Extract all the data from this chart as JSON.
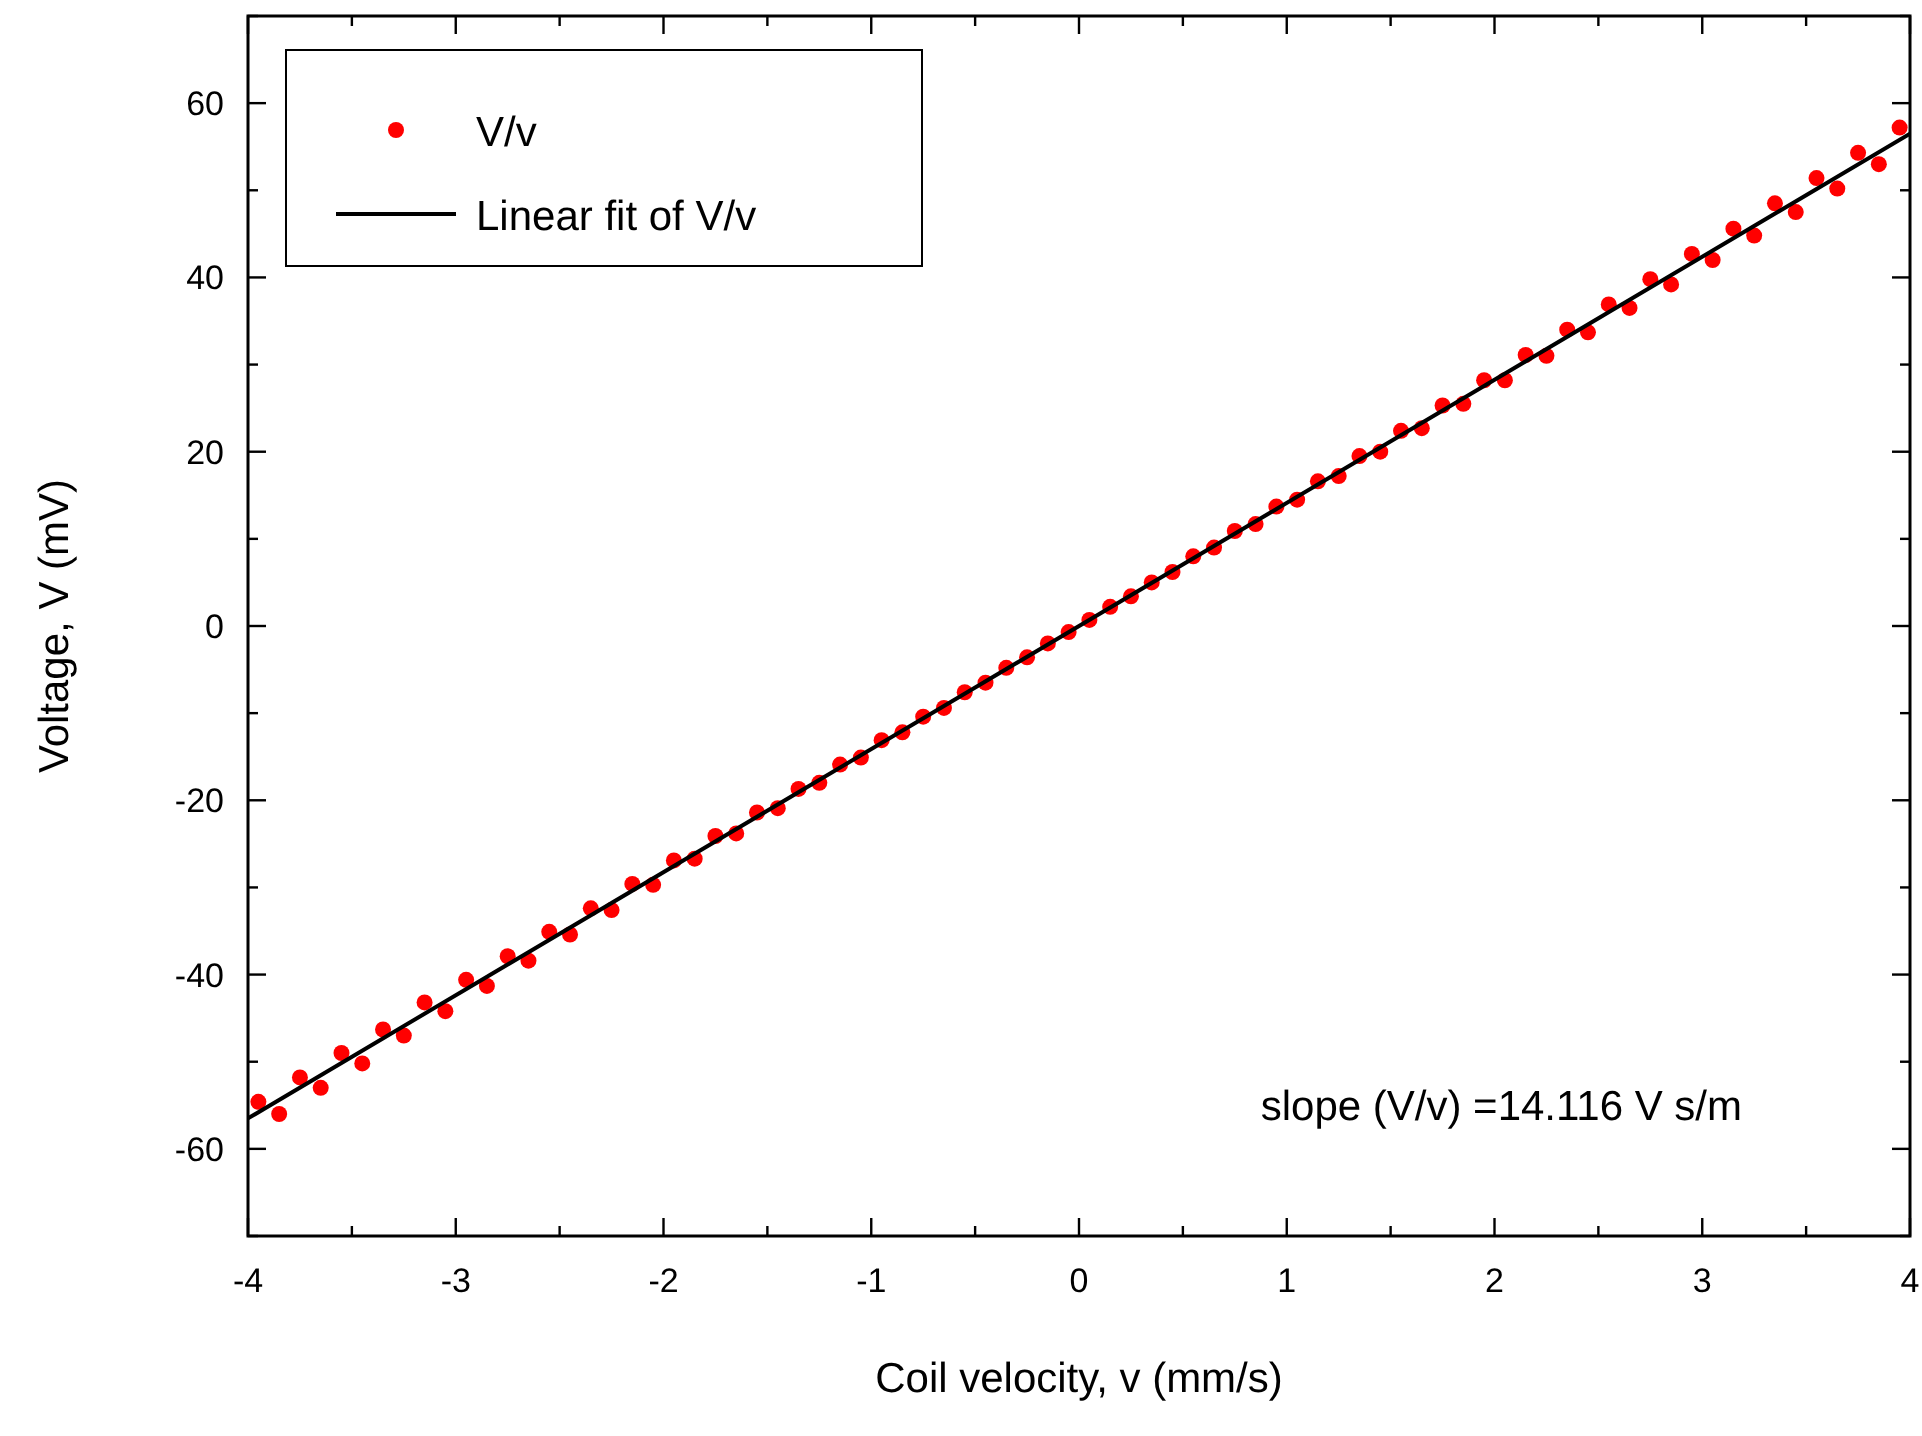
{
  "chart_data": {
    "type": "scatter",
    "xlabel": "Coil velocity, v (mm/s)",
    "ylabel": "Voltage, V (mV)",
    "xlim": [
      -4,
      4
    ],
    "ylim": [
      -70,
      70
    ],
    "xticks": [
      -4,
      {
        "value": -3.5,
        "label": null
      },
      -3,
      {
        "value": -2.5,
        "label": null
      },
      -2,
      {
        "value": -1.5,
        "label": null
      },
      -1,
      {
        "value": -0.5,
        "label": null
      },
      0,
      {
        "value": 0.5,
        "label": null
      },
      1,
      {
        "value": 1.5,
        "label": null
      },
      2,
      {
        "value": 2.5,
        "label": null
      },
      3,
      {
        "value": 3.5,
        "label": null
      },
      4
    ],
    "yticks": [
      {
        "value": -70,
        "label": null
      },
      -60,
      {
        "value": -50,
        "label": null
      },
      -40,
      {
        "value": -30,
        "label": null
      },
      -20,
      {
        "value": -10,
        "label": null
      },
      0,
      {
        "value": 10,
        "label": null
      },
      20,
      {
        "value": 30,
        "label": null
      },
      40,
      {
        "value": 50,
        "label": null
      },
      60,
      {
        "value": 70,
        "label": null
      }
    ],
    "marker": "circle",
    "legend": "top left",
    "annotations": [
      "slope (V/v) =14.116 V s/m"
    ],
    "series": [
      {
        "name": "V/v",
        "color": "#ff0000",
        "x": [
          -3.95,
          -3.85,
          -3.75,
          -3.65,
          -3.55,
          -3.45,
          -3.35,
          -3.25,
          -3.15,
          -3.05,
          -2.95,
          -2.85,
          -2.75,
          -2.65,
          -2.55,
          -2.45,
          -2.35,
          -2.25,
          -2.15,
          -2.05,
          -1.95,
          -1.85,
          -1.75,
          -1.65,
          -1.55,
          -1.45,
          -1.35,
          -1.25,
          -1.15,
          -1.05,
          -0.95,
          -0.85,
          -0.75,
          -0.65,
          -0.55,
          -0.45,
          -0.35,
          -0.25,
          -0.15,
          -0.05,
          0.05,
          0.15,
          0.25,
          0.35,
          0.45,
          0.55,
          0.65,
          0.75,
          0.85,
          0.95,
          1.05,
          1.15,
          1.25,
          1.35,
          1.45,
          1.55,
          1.65,
          1.75,
          1.85,
          1.95,
          2.05,
          2.15,
          2.25,
          2.35,
          2.45,
          2.55,
          2.65,
          2.75,
          2.85,
          2.95,
          3.05,
          3.15,
          3.25,
          3.35,
          3.45,
          3.55,
          3.65,
          3.75,
          3.85,
          3.95
        ],
        "values": [
          -54.6,
          -56.0,
          -51.8,
          -53.0,
          -49.0,
          -50.2,
          -46.3,
          -47.0,
          -43.2,
          -44.2,
          -40.6,
          -41.3,
          -37.9,
          -38.4,
          -35.1,
          -35.4,
          -32.4,
          -32.6,
          -29.6,
          -29.7,
          -26.9,
          -26.7,
          -24.1,
          -23.8,
          -21.4,
          -20.9,
          -18.7,
          -18.0,
          -15.9,
          -15.1,
          -13.1,
          -12.2,
          -10.4,
          -9.4,
          -7.6,
          -6.5,
          -4.8,
          -3.6,
          -2.0,
          -0.7,
          0.7,
          2.2,
          3.4,
          5.0,
          6.2,
          8.0,
          9.0,
          10.9,
          11.7,
          13.7,
          14.5,
          16.6,
          17.2,
          19.5,
          20.0,
          22.4,
          22.7,
          25.3,
          25.5,
          28.2,
          28.2,
          31.1,
          31.0,
          34.0,
          33.7,
          36.9,
          36.5,
          39.8,
          39.2,
          42.7,
          42.0,
          45.6,
          44.8,
          48.5,
          47.5,
          51.4,
          50.2,
          54.3,
          53.0,
          57.2
        ]
      },
      {
        "name": "Linear fit of V/v",
        "type": "line",
        "marker": "none",
        "color": "#000000",
        "x": [
          -4,
          4
        ],
        "values": [
          -56.5,
          56.5
        ]
      }
    ]
  }
}
